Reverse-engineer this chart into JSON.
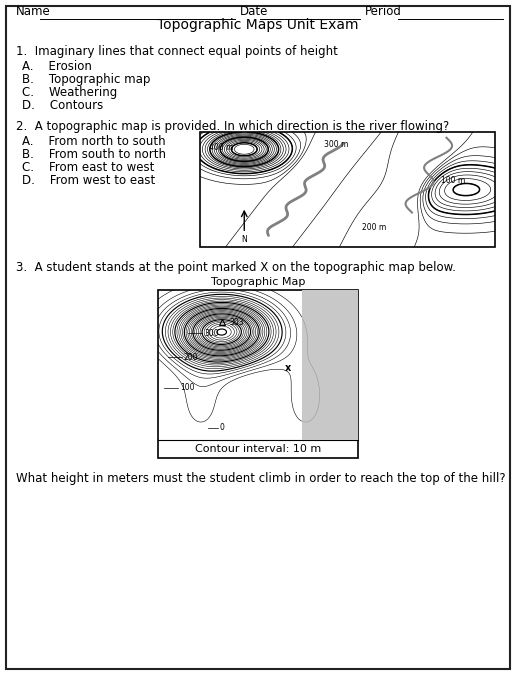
{
  "title": "Topographic Maps Unit Exam",
  "name_line": "Name",
  "date_line": "Date",
  "period_line": "Period",
  "q1_text": "1.  Imaginary lines that connect equal points of height",
  "q1_options": [
    "A.    Erosion",
    "B.    Topographic map",
    "C.    Weathering",
    "D.    Contours"
  ],
  "q2_text": "2.  A topographic map is provided. In which direction is the river flowing?",
  "q2_options": [
    "A.    From north to south",
    "B.    From south to north",
    "C.    From east to west",
    "D.    From west to east"
  ],
  "q3_text": "3.  A student stands at the point marked X on the topographic map below.",
  "q3_subtitle": "Topographic Map",
  "q3_contour_label": "Contour interval: 10 m",
  "q3_final": "What height in meters must the student climb in order to reach the top of the hill?",
  "bg_color": "#ffffff"
}
